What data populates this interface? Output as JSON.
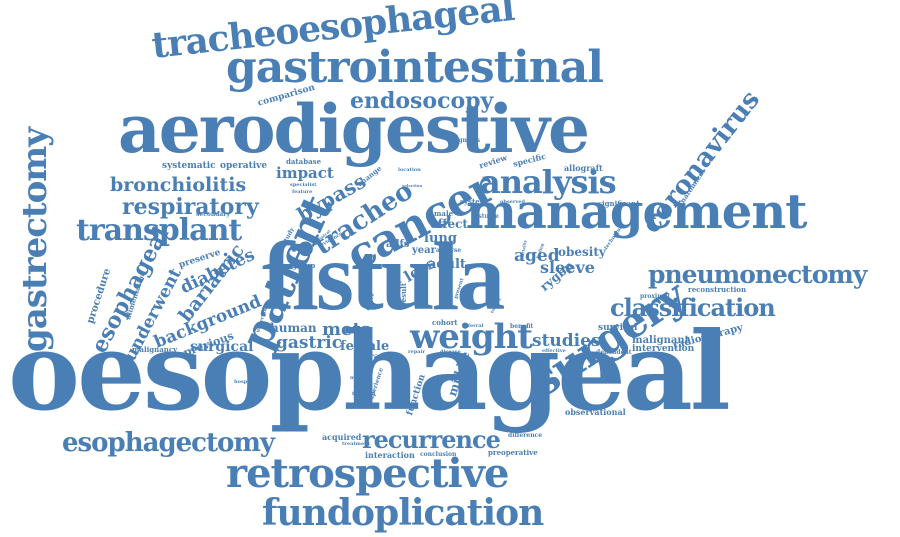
{
  "color": "#4a7fb5",
  "words": {
    "oesophageal": "oesophageal",
    "fistula": "fistula",
    "aerodigestive": "aerodigestive",
    "management": "management",
    "gastrointestinal": "gastrointestinal",
    "tracheoesophageal": "tracheoesophageal",
    "retrospective": "retrospective",
    "fundoplication": "fundoplication",
    "cancer": "cancer",
    "surgery": "surgery",
    "patient": "patient",
    "gastrectomy": "gastrectomy",
    "coronavirus": "coronavirus",
    "transplant": "transplant",
    "esophagectomy": "esophagectomy",
    "pneumonectomy": "pneumonectomy",
    "analysis": "analysis",
    "weight": "weight",
    "recurrence": "recurrence",
    "classification": "classification",
    "respiratory": "respiratory",
    "bronchiolitis": "bronchiolitis",
    "endosocopy": "endosocopy",
    "esophageal": "esophageal",
    "tracheo": "tracheo",
    "bariatric": "bariatric",
    "underwent": "underwent",
    "bypass": "bypass",
    "sleeve": "sleeve",
    "studies": "studies",
    "meta": "meta",
    "gastric": "gastric",
    "human": "human",
    "aged": "aged",
    "diabetes": "diabetes",
    "background": "background",
    "surgical": "surgical",
    "impact": "impact",
    "adult": "adult",
    "obesity": "obesity",
    "female": "female",
    "rygbp": "rygbp",
    "loss": "loss",
    "lung": "lung",
    "year": "year",
    "effect": "effect",
    "middle": "middle",
    "function": "function",
    "radiotherapy": "radiotherapy",
    "malignant": "malignant",
    "intervention": "intervention",
    "survival": "survival",
    "previous": "previous",
    "procedure": "procedure",
    "comparison": "comparison",
    "systematic": "systematic",
    "operative": "operative",
    "database": "database",
    "diagnosis": "diagnosis",
    "review": "review",
    "specific": "specific",
    "allograft": "allograft",
    "anatomical": "anatomical",
    "reconstruction": "reconstruction",
    "proximal": "proximal",
    "observational": "observational",
    "acquired": "acquired",
    "interaction": "interaction",
    "conclusion": "conclusion",
    "preoperative": "preoperative",
    "difference": "difference",
    "cohort": "cohort",
    "benefit": "benefit",
    "effective": "effective",
    "dependent": "dependent",
    "significant": "significant",
    "preserve": "preserve",
    "alimentation": "alimentation",
    "malignancy": "malignancy",
    "secondary": "secondary",
    "male": "male",
    "system": "system",
    "fistulae": "fistulae",
    "observed": "observed",
    "change": "change",
    "specialist": "specialist",
    "feature": "feature",
    "group": "group",
    "location": "location",
    "selection": "selection",
    "undertaken": "undertaken",
    "treatment": "treatment",
    "hospital": "hospital",
    "method": "method",
    "tracheal": "tracheal",
    "tract": "tract",
    "repair": "repair",
    "disease": "disease",
    "experience": "experience",
    "adfs": "adfs",
    "analyse": "analyse",
    "result": "result",
    "present": "present",
    "upper": "upper",
    "study": "study",
    "centre": "centre",
    "technique": "technique",
    "finding": "finding",
    "tertiary": "tertiary",
    "mortality": "mortality",
    "referral": "referral",
    "clinical": "clinical",
    "evidence": "evidence"
  }
}
